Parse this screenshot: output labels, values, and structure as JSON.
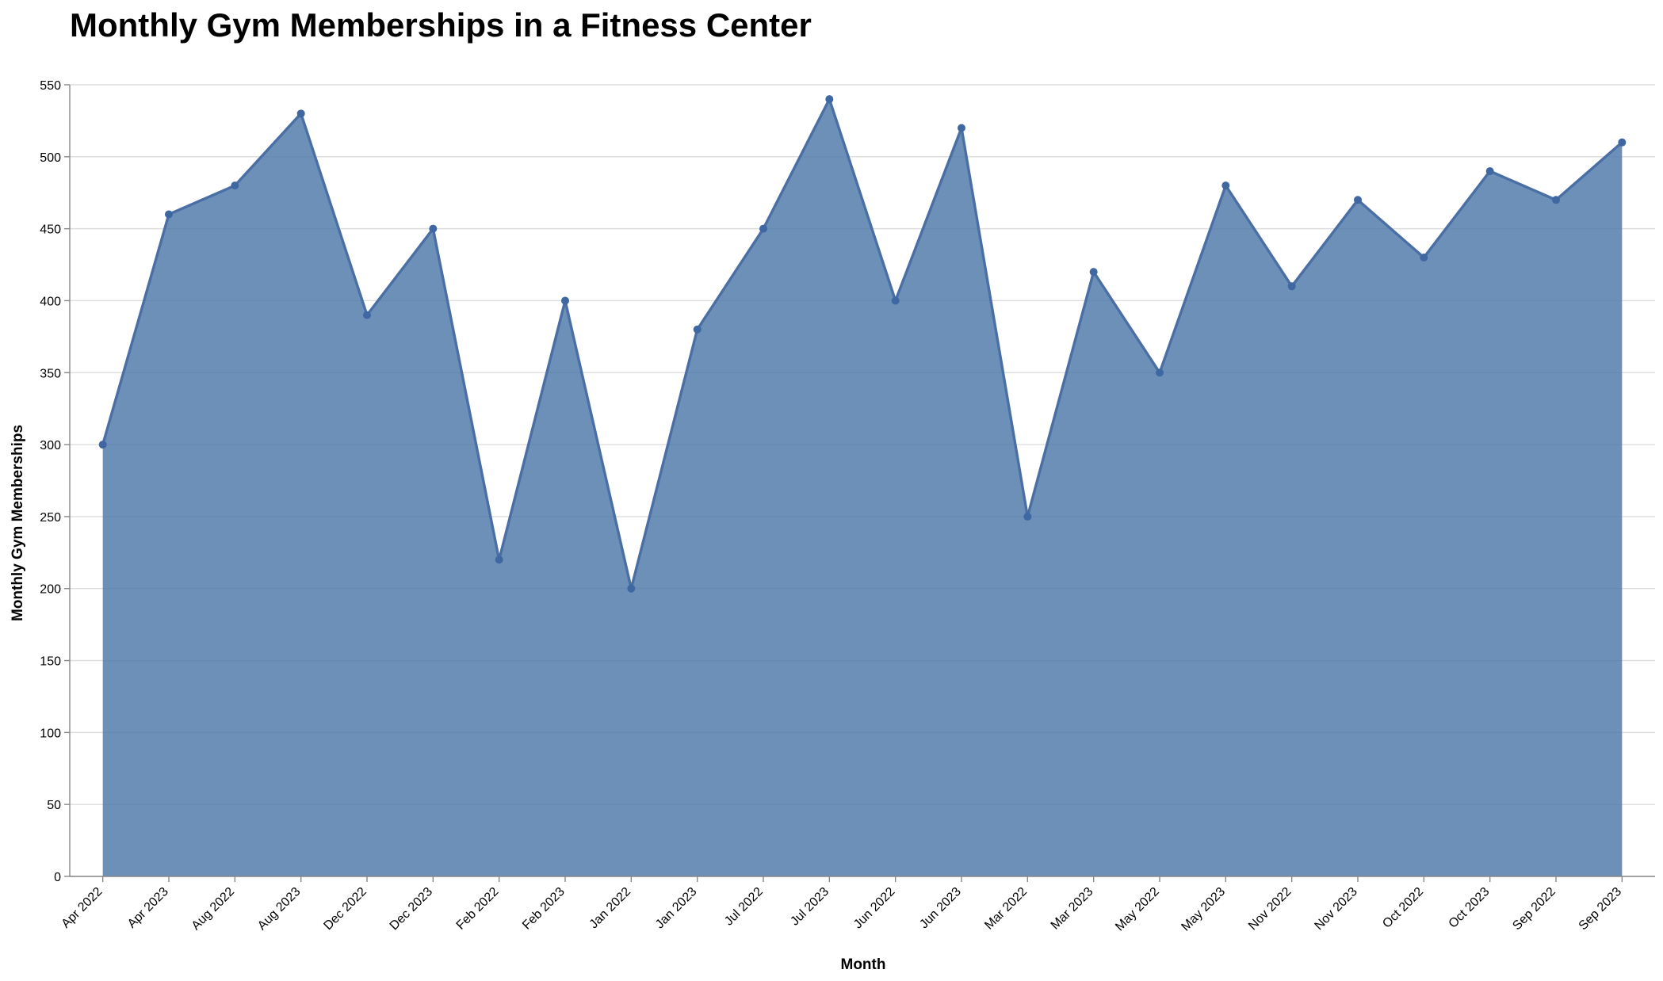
{
  "chart_data": {
    "type": "area",
    "title": "Monthly Gym Memberships in a Fitness Center",
    "xlabel": "Month",
    "ylabel": "Monthly Gym Memberships",
    "ylim": [
      0,
      550
    ],
    "yticks": [
      0,
      50,
      100,
      150,
      200,
      250,
      300,
      350,
      400,
      450,
      500,
      550
    ],
    "grid": true,
    "colors": {
      "area": "#4c78a8",
      "line": "#4a6fa5",
      "point": "#3f68a3"
    },
    "categories": [
      "Apr 2022",
      "Apr 2023",
      "Aug 2022",
      "Aug 2023",
      "Dec 2022",
      "Dec 2023",
      "Feb 2022",
      "Feb 2023",
      "Jan 2022",
      "Jan 2023",
      "Jul 2022",
      "Jul 2023",
      "Jun 2022",
      "Jun 2023",
      "Mar 2022",
      "Mar 2023",
      "May 2022",
      "May 2023",
      "Nov 2022",
      "Nov 2023",
      "Oct 2022",
      "Oct 2023",
      "Sep 2022",
      "Sep 2023"
    ],
    "values": [
      300,
      460,
      480,
      530,
      390,
      450,
      220,
      400,
      200,
      380,
      450,
      540,
      400,
      520,
      250,
      420,
      350,
      480,
      410,
      470,
      430,
      490,
      470,
      510
    ]
  }
}
